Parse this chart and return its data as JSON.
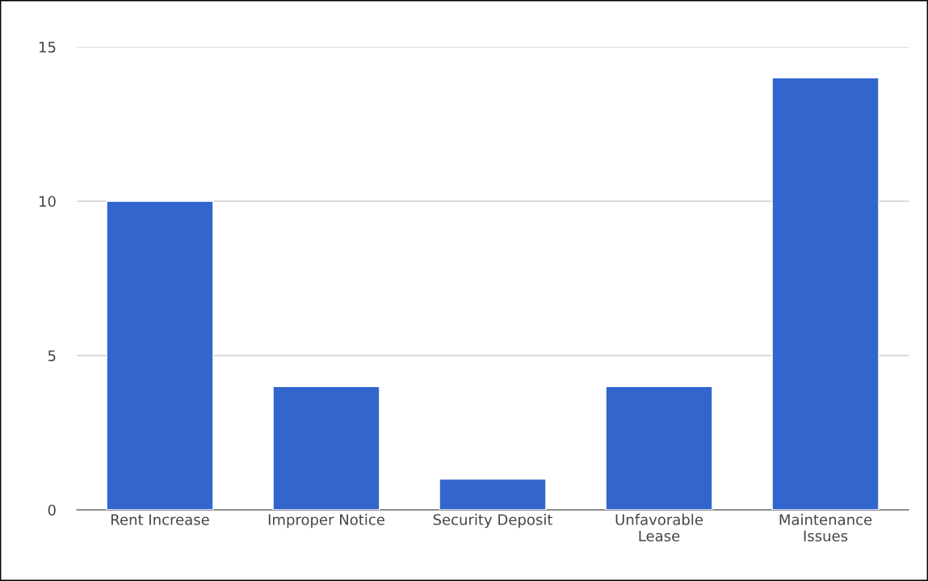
{
  "chart_data": {
    "type": "bar",
    "categories": [
      "Rent Increase",
      "Improper Notice",
      "Security Deposit",
      "Unfavorable\nLease",
      "Maintenance\nIssues"
    ],
    "values": [
      10,
      4,
      1,
      4,
      14
    ],
    "color": "#3366cc",
    "ylim": [
      0,
      15
    ],
    "yticks": [
      0,
      5,
      10,
      15
    ],
    "grid": "y",
    "legend": false
  }
}
